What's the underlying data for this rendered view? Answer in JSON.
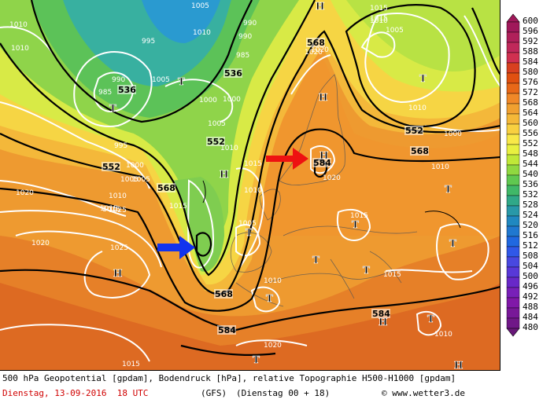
{
  "legend": {
    "values": [
      600,
      596,
      592,
      588,
      584,
      580,
      576,
      572,
      568,
      564,
      560,
      556,
      552,
      548,
      544,
      540,
      536,
      532,
      528,
      524,
      520,
      516,
      512,
      508,
      504,
      500,
      496,
      492,
      488,
      484,
      480
    ],
    "colors": [
      "#a0185a",
      "#b0205a",
      "#c0285a",
      "#d03050",
      "#d84020",
      "#e05010",
      "#e86818",
      "#f08828",
      "#f0a030",
      "#f4b838",
      "#f8d040",
      "#f8e848",
      "#e8f040",
      "#c0e838",
      "#90d840",
      "#60c850",
      "#40b868",
      "#30a888",
      "#2898a8",
      "#2088c0",
      "#2078d0",
      "#2068e0",
      "#3058e8",
      "#4848e0",
      "#5838d8",
      "#6828c8",
      "#7820b8",
      "#8018a8",
      "#781898",
      "#701888",
      "#681878"
    ]
  },
  "map": {
    "gph_labels": [
      "536",
      "536",
      "552",
      "552",
      "568",
      "568",
      "552",
      "568",
      "584",
      "568",
      "584",
      "584"
    ],
    "pressure_labels": [
      "1005",
      "1010",
      "995",
      "990",
      "985",
      "990",
      "985",
      "1005",
      "1000",
      "990",
      "1005",
      "1000",
      "995",
      "1000",
      "1005",
      "1020",
      "1010",
      "1015",
      "1010",
      "1015",
      "1020",
      "1020",
      "1025",
      "1025",
      "1015",
      "1010",
      "1005",
      "1005",
      "1015",
      "1010",
      "1020",
      "1015",
      "1015",
      "1010",
      "1010",
      "1020",
      "1015",
      "1015",
      "1015",
      "1010",
      "1000",
      "1005",
      "1010",
      "1020",
      "1010",
      "1010"
    ],
    "high_marker": "H",
    "low_marker": "T"
  },
  "caption": {
    "line1": "500 hPa Geopotential [gpdam], Bodendruck [hPa], relative Topographie H500-H1000 [gpdam]",
    "date": "Dienstag, 13-09-2016  18 UTC",
    "model": "(GFS)",
    "run": "(Dienstag 00 + 18)",
    "credit": "© www.wetter3.de"
  }
}
